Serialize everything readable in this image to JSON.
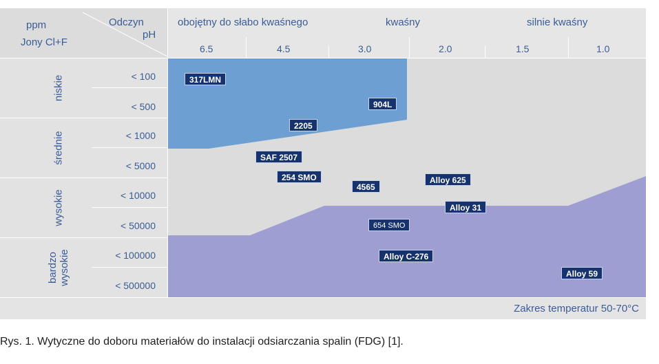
{
  "header": {
    "ppm": "ppm",
    "jony": "Jony Cl+F",
    "odczyn": "Odczyn",
    "ph": "pH",
    "cat_neutral": "obojętny do słabo kwaśnego",
    "cat_acid": "kwaśny",
    "cat_strong": "silnie kwaśny",
    "ph_values": [
      "6.5",
      "4.5",
      "3.0",
      "2.0",
      "1.5",
      "1.0"
    ]
  },
  "rows": {
    "groups": [
      "niskie",
      "średnie",
      "wysokie",
      "bardzo wysokie"
    ],
    "concentrations": [
      "< 100",
      "< 500",
      "< 1000",
      "< 5000",
      "< 10000",
      "< 50000",
      "< 100000",
      "< 500000"
    ]
  },
  "materials": {
    "m1": "317LMN",
    "m2": "904L",
    "m3": "2205",
    "m4": "SAF 2507",
    "m5": "254 SMO",
    "m6": "4565",
    "m7": "Alloy 625",
    "m8": "Alloy 31",
    "m9": "654 SMO",
    "m10": "Alloy C-276",
    "m11": "Alloy 59"
  },
  "footer": "Zakres temperatur 50-70°C",
  "caption": "Rys. 1. Wytyczne do doboru materiałów do instalacji odsiarczania spalin (FDG) [1].",
  "colors": {
    "region_top": "#6e9fd2",
    "region_bottom": "#9e9ed3",
    "region_middle": "#dcdcdc",
    "label_bg": "#17336d",
    "text_blue": "#3a5c96"
  }
}
